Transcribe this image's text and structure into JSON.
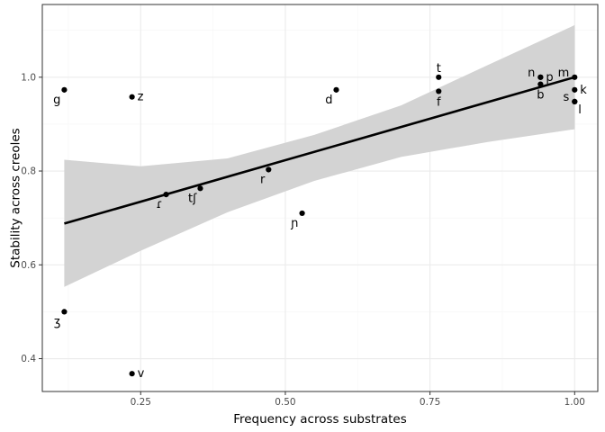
{
  "chart_data": {
    "type": "scatter",
    "xlabel": "Frequency across substrates",
    "ylabel": "Stability across creoles",
    "xlim": [
      0.08,
      1.04
    ],
    "ylim": [
      0.33,
      1.155
    ],
    "x_ticks": [
      0.25,
      0.5,
      0.75,
      1.0
    ],
    "x_tick_labels": [
      "0.25",
      "0.50",
      "0.75",
      "1.00"
    ],
    "y_ticks": [
      0.4,
      0.6,
      0.8,
      1.0
    ],
    "y_tick_labels": [
      "0.4",
      "0.6",
      "0.8",
      "1.0"
    ],
    "grid": true,
    "colors": {
      "points": "#000000",
      "line": "#000000",
      "ribbon": "#d3d3d3",
      "grid": "#ebebeb"
    },
    "points": [
      {
        "label": "g",
        "x": 0.118,
        "y": 0.973,
        "anchor": "below-left"
      },
      {
        "label": "z",
        "x": 0.235,
        "y": 0.958,
        "anchor": "right"
      },
      {
        "label": "ʒ",
        "x": 0.118,
        "y": 0.5,
        "anchor": "below-left"
      },
      {
        "label": "v",
        "x": 0.235,
        "y": 0.368,
        "anchor": "right"
      },
      {
        "label": "ɾ",
        "x": 0.294,
        "y": 0.75,
        "anchor": "below-left"
      },
      {
        "label": "tʃ",
        "x": 0.353,
        "y": 0.763,
        "anchor": "below-left"
      },
      {
        "label": "r",
        "x": 0.471,
        "y": 0.803,
        "anchor": "below-left"
      },
      {
        "label": "ɲ",
        "x": 0.529,
        "y": 0.71,
        "anchor": "below-left"
      },
      {
        "label": "d",
        "x": 0.588,
        "y": 0.973,
        "anchor": "below-left"
      },
      {
        "label": "t",
        "x": 0.765,
        "y": 1.0,
        "anchor": "above"
      },
      {
        "label": "f",
        "x": 0.765,
        "y": 0.97,
        "anchor": "below"
      },
      {
        "label": "n",
        "x": 0.941,
        "y": 1.0,
        "anchor": "left"
      },
      {
        "label": "p",
        "x": 0.941,
        "y": 1.0,
        "anchor": "right"
      },
      {
        "label": "b",
        "x": 0.941,
        "y": 0.985,
        "anchor": "below"
      },
      {
        "label": "m",
        "x": 1.0,
        "y": 1.0,
        "anchor": "left"
      },
      {
        "label": "k",
        "x": 1.0,
        "y": 0.973,
        "anchor": "right"
      },
      {
        "label": "s",
        "x": 1.0,
        "y": 0.948,
        "anchor": "left"
      },
      {
        "label": "l",
        "x": 1.0,
        "y": 0.948,
        "anchor": "below-right"
      }
    ],
    "fit_line": {
      "x": [
        0.118,
        1.0
      ],
      "y": [
        0.688,
        1.0
      ]
    },
    "confidence_band": {
      "x": [
        0.118,
        0.25,
        0.4,
        0.55,
        0.7,
        0.85,
        1.0
      ],
      "lower": [
        0.553,
        0.63,
        0.712,
        0.779,
        0.83,
        0.862,
        0.889
      ],
      "upper": [
        0.824,
        0.81,
        0.827,
        0.877,
        0.94,
        1.026,
        1.111
      ]
    }
  }
}
